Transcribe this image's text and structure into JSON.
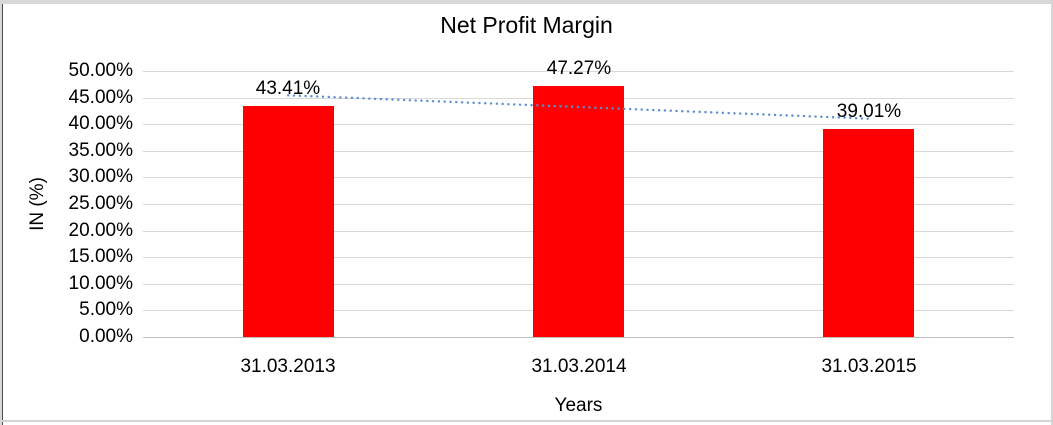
{
  "chart_data": {
    "type": "bar",
    "title": "Net Profit Margin",
    "categories": [
      "31.03.2013",
      "31.03.2014",
      "31.03.2015"
    ],
    "values": [
      43.41,
      47.27,
      39.01
    ],
    "data_labels": [
      "43.41%",
      "47.27%",
      "39.01%"
    ],
    "xlabel": "Years",
    "ylabel": "IN (%)",
    "ylim": [
      0,
      50
    ],
    "ytick_step": 5,
    "ytick_labels": [
      "0.00%",
      "5.00%",
      "10.00%",
      "15.00%",
      "20.00%",
      "25.00%",
      "30.00%",
      "35.00%",
      "40.00%",
      "45.00%",
      "50.00%"
    ],
    "grid": true,
    "legend": "none",
    "bar_color": "#ff0000",
    "gridline_color": "#d9d9d9",
    "axis_line_color": "#bfbfbf",
    "trendline": {
      "type": "linear",
      "style": "dotted",
      "color": "#5b8fd0"
    }
  }
}
